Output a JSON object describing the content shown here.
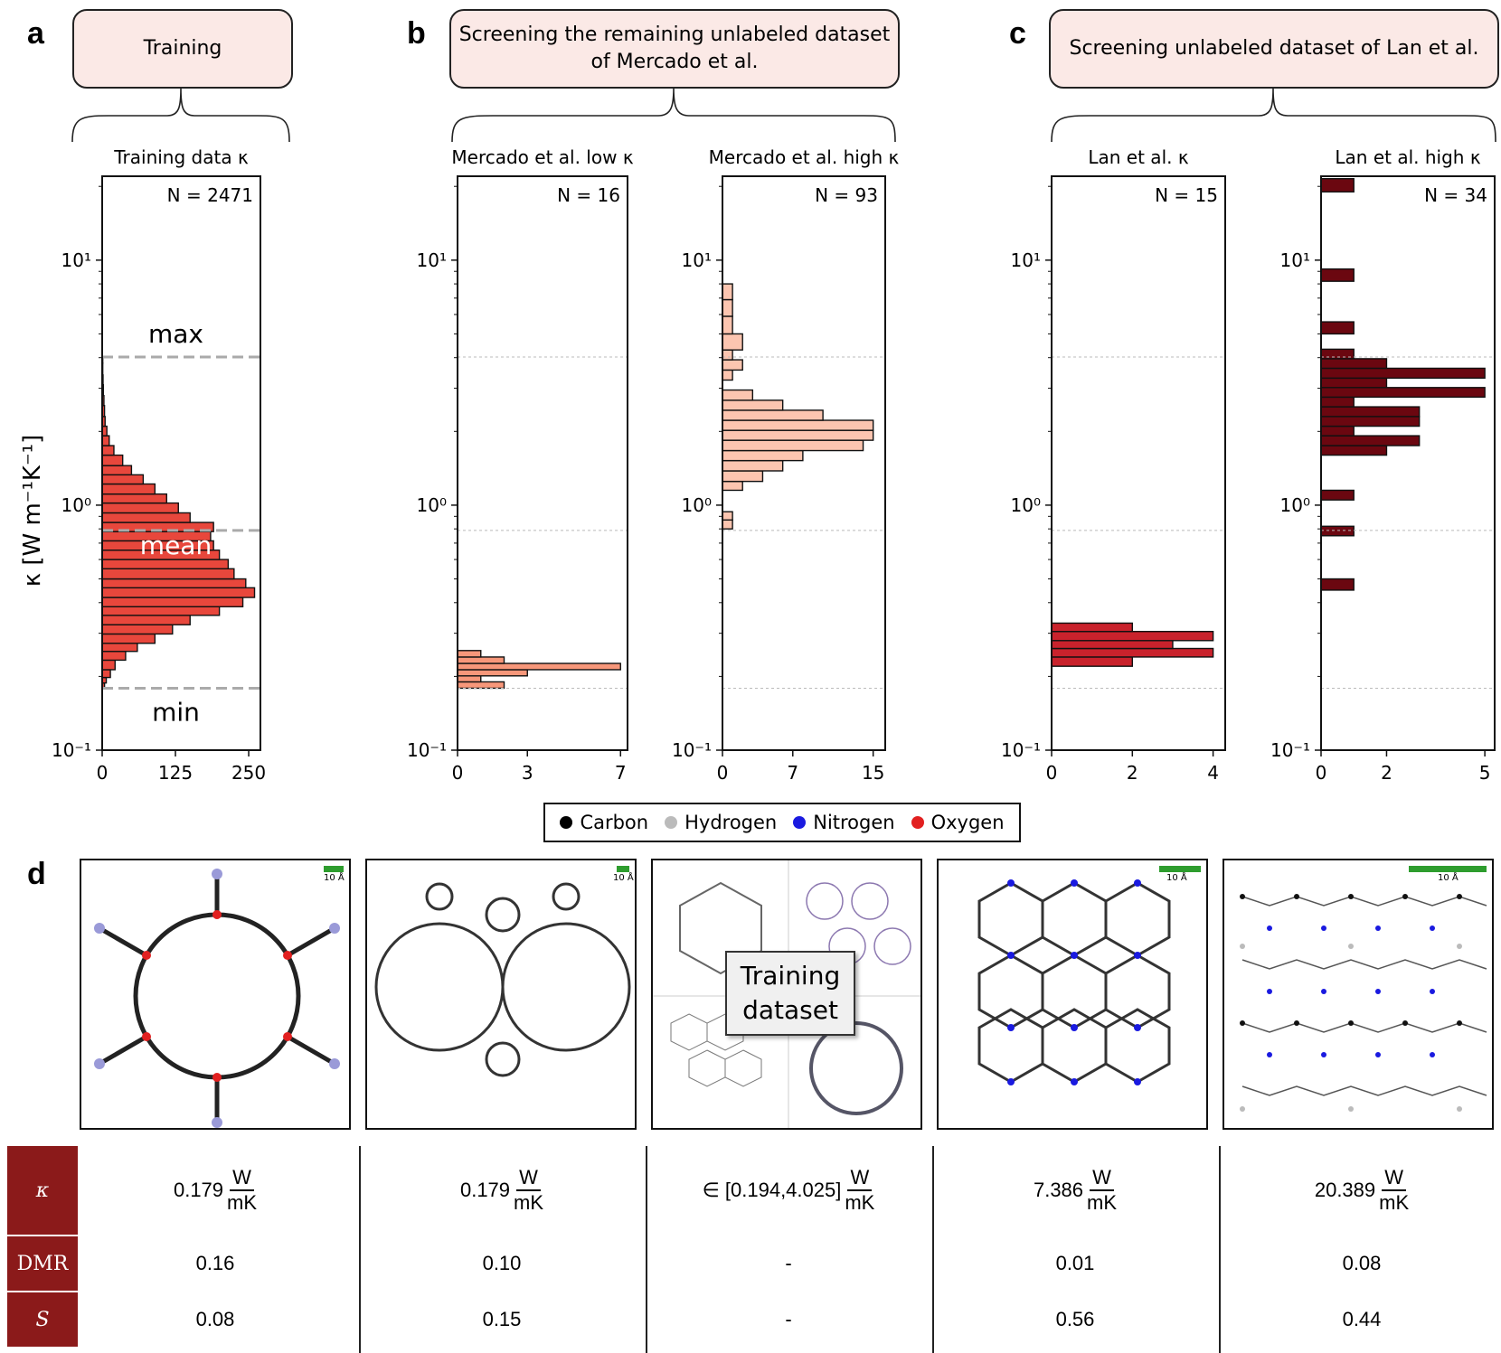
{
  "panels": {
    "a": {
      "letter": "a",
      "header": [
        "Training"
      ]
    },
    "b": {
      "letter": "b",
      "header": [
        "Screening the remaining unlabeled dataset",
        "of Mercado et al."
      ]
    },
    "c": {
      "letter": "c",
      "header": [
        "Screening unlabeled dataset of Lan et al."
      ]
    },
    "d": {
      "letter": "d"
    }
  },
  "y_axis_label": "κ [W m⁻¹K⁻¹]",
  "y_ticks": [
    "10¹",
    "10⁰",
    "10⁻¹"
  ],
  "chart_data": [
    {
      "type": "bar",
      "orientation": "horizontal",
      "title": "Training data κ",
      "n_label": "N = 2471",
      "color": "#e8473c",
      "ylim": [
        0.1,
        22
      ],
      "yscale": "log",
      "xticks": [
        0,
        125,
        250
      ],
      "xlim": [
        0,
        270
      ],
      "bins": [
        [
          0.178,
          0.188,
          4
        ],
        [
          0.188,
          0.198,
          7
        ],
        [
          0.198,
          0.213,
          14
        ],
        [
          0.213,
          0.233,
          22
        ],
        [
          0.233,
          0.253,
          40
        ],
        [
          0.253,
          0.273,
          60
        ],
        [
          0.273,
          0.298,
          90
        ],
        [
          0.298,
          0.325,
          120
        ],
        [
          0.325,
          0.355,
          150
        ],
        [
          0.355,
          0.385,
          200
        ],
        [
          0.385,
          0.42,
          240
        ],
        [
          0.42,
          0.46,
          260
        ],
        [
          0.46,
          0.5,
          245
        ],
        [
          0.5,
          0.55,
          225
        ],
        [
          0.55,
          0.6,
          215
        ],
        [
          0.6,
          0.655,
          200
        ],
        [
          0.655,
          0.715,
          190
        ],
        [
          0.715,
          0.78,
          185
        ],
        [
          0.78,
          0.85,
          190
        ],
        [
          0.85,
          0.93,
          150
        ],
        [
          0.93,
          1.02,
          130
        ],
        [
          1.02,
          1.11,
          110
        ],
        [
          1.11,
          1.22,
          90
        ],
        [
          1.22,
          1.33,
          70
        ],
        [
          1.33,
          1.45,
          50
        ],
        [
          1.45,
          1.6,
          35
        ],
        [
          1.6,
          1.75,
          20
        ],
        [
          1.75,
          1.92,
          12
        ],
        [
          1.92,
          2.1,
          8
        ],
        [
          2.1,
          2.3,
          5
        ],
        [
          2.3,
          2.55,
          4
        ],
        [
          2.55,
          2.8,
          3
        ],
        [
          2.8,
          3.1,
          2
        ],
        [
          3.1,
          3.4,
          1.5
        ],
        [
          3.4,
          3.8,
          1
        ],
        [
          3.8,
          4.02,
          1
        ]
      ],
      "hlines": [
        {
          "value": 4.025,
          "label": "max"
        },
        {
          "value": 0.789,
          "label": "mean"
        },
        {
          "value": 0.179,
          "label": "min"
        }
      ]
    },
    {
      "type": "bar",
      "orientation": "horizontal",
      "title": "Mercado et al. low κ",
      "n_label": "N = 16",
      "color": "#f7977a",
      "ylim": [
        0.1,
        22
      ],
      "yscale": "log",
      "xticks": [
        0,
        3,
        7
      ],
      "xlim": [
        0,
        7.3
      ],
      "bins": [
        [
          0.179,
          0.19,
          2
        ],
        [
          0.19,
          0.201,
          1
        ],
        [
          0.201,
          0.213,
          3
        ],
        [
          0.213,
          0.226,
          7
        ],
        [
          0.226,
          0.24,
          2
        ],
        [
          0.24,
          0.255,
          1
        ]
      ],
      "hlines": [
        {
          "value": 4.025
        },
        {
          "value": 0.789
        },
        {
          "value": 0.179
        }
      ]
    },
    {
      "type": "bar",
      "orientation": "horizontal",
      "title": "Mercado et al. high κ",
      "n_label": "N = 93",
      "color": "#fcc5b0",
      "ylim": [
        0.1,
        22
      ],
      "yscale": "log",
      "xticks": [
        0,
        7,
        15
      ],
      "xlim": [
        0,
        16.2
      ],
      "bins": [
        [
          0.8,
          0.87,
          1
        ],
        [
          0.87,
          0.94,
          1
        ],
        [
          1.15,
          1.25,
          2
        ],
        [
          1.25,
          1.38,
          4
        ],
        [
          1.38,
          1.52,
          6
        ],
        [
          1.52,
          1.67,
          8
        ],
        [
          1.67,
          1.84,
          14
        ],
        [
          1.84,
          2.02,
          15
        ],
        [
          2.02,
          2.22,
          15
        ],
        [
          2.22,
          2.44,
          10
        ],
        [
          2.44,
          2.68,
          6
        ],
        [
          2.68,
          2.95,
          3
        ],
        [
          3.24,
          3.56,
          1
        ],
        [
          3.56,
          3.92,
          2
        ],
        [
          3.92,
          4.3,
          1
        ],
        [
          4.3,
          5.0,
          2
        ],
        [
          5.0,
          5.9,
          1
        ],
        [
          5.9,
          6.9,
          1
        ],
        [
          6.9,
          8.0,
          1
        ]
      ],
      "hlines": [
        {
          "value": 4.025
        },
        {
          "value": 0.789
        },
        {
          "value": 0.179
        }
      ]
    },
    {
      "type": "bar",
      "orientation": "horizontal",
      "title": "Lan et al. κ",
      "n_label": "N = 15",
      "color": "#c9222c",
      "ylim": [
        0.1,
        22
      ],
      "yscale": "log",
      "xticks": [
        0,
        2,
        4
      ],
      "xlim": [
        0,
        4.3
      ],
      "bins": [
        [
          0.22,
          0.24,
          2
        ],
        [
          0.24,
          0.26,
          4
        ],
        [
          0.26,
          0.28,
          3
        ],
        [
          0.28,
          0.305,
          4
        ],
        [
          0.305,
          0.33,
          2
        ]
      ],
      "hlines": [
        {
          "value": 4.025
        },
        {
          "value": 0.789
        },
        {
          "value": 0.179
        }
      ]
    },
    {
      "type": "bar",
      "orientation": "horizontal",
      "title": "Lan et al. high κ",
      "n_label": "N = 34",
      "color": "#6b0710",
      "ylim": [
        0.1,
        22
      ],
      "yscale": "log",
      "xticks": [
        0,
        2,
        5
      ],
      "xlim": [
        0,
        5.3
      ],
      "bins": [
        [
          0.45,
          0.5,
          1
        ],
        [
          0.75,
          0.82,
          1
        ],
        [
          1.05,
          1.15,
          1
        ],
        [
          1.6,
          1.75,
          2
        ],
        [
          1.75,
          1.92,
          3
        ],
        [
          1.92,
          2.1,
          1
        ],
        [
          2.1,
          2.3,
          3
        ],
        [
          2.3,
          2.52,
          3
        ],
        [
          2.52,
          2.76,
          1
        ],
        [
          2.76,
          3.02,
          5
        ],
        [
          3.02,
          3.3,
          2
        ],
        [
          3.3,
          3.62,
          5
        ],
        [
          3.62,
          3.96,
          2
        ],
        [
          3.96,
          4.33,
          1
        ],
        [
          5.0,
          5.6,
          1
        ],
        [
          8.2,
          9.2,
          1
        ],
        [
          19.0,
          21.5,
          1
        ]
      ],
      "hlines": [
        {
          "value": 4.025
        },
        {
          "value": 0.789
        },
        {
          "value": 0.179
        }
      ]
    }
  ],
  "legend": [
    {
      "label": "Carbon",
      "color": "#000000"
    },
    {
      "label": "Hydrogen",
      "color": "#bbbbbb"
    },
    {
      "label": "Nitrogen",
      "color": "#1a1ae0"
    },
    {
      "label": "Oxygen",
      "color": "#e22020"
    }
  ],
  "structures": {
    "scale_label": "10 Å",
    "training_label": [
      "Training",
      "dataset"
    ]
  },
  "table": {
    "row_labels": [
      "κ",
      "DMR",
      "S"
    ],
    "unit_num": "W",
    "unit_den": "mK",
    "columns": [
      {
        "kappa": "0.179",
        "dmr": "0.16",
        "s": "0.08"
      },
      {
        "kappa": "0.179",
        "dmr": "0.10",
        "s": "0.15"
      },
      {
        "kappa": "∈  [0.194,4.025]",
        "dmr": "-",
        "s": "-"
      },
      {
        "kappa": "7.386",
        "dmr": "0.01",
        "s": "0.56"
      },
      {
        "kappa": "20.389",
        "dmr": "0.08",
        "s": "0.44"
      }
    ]
  }
}
